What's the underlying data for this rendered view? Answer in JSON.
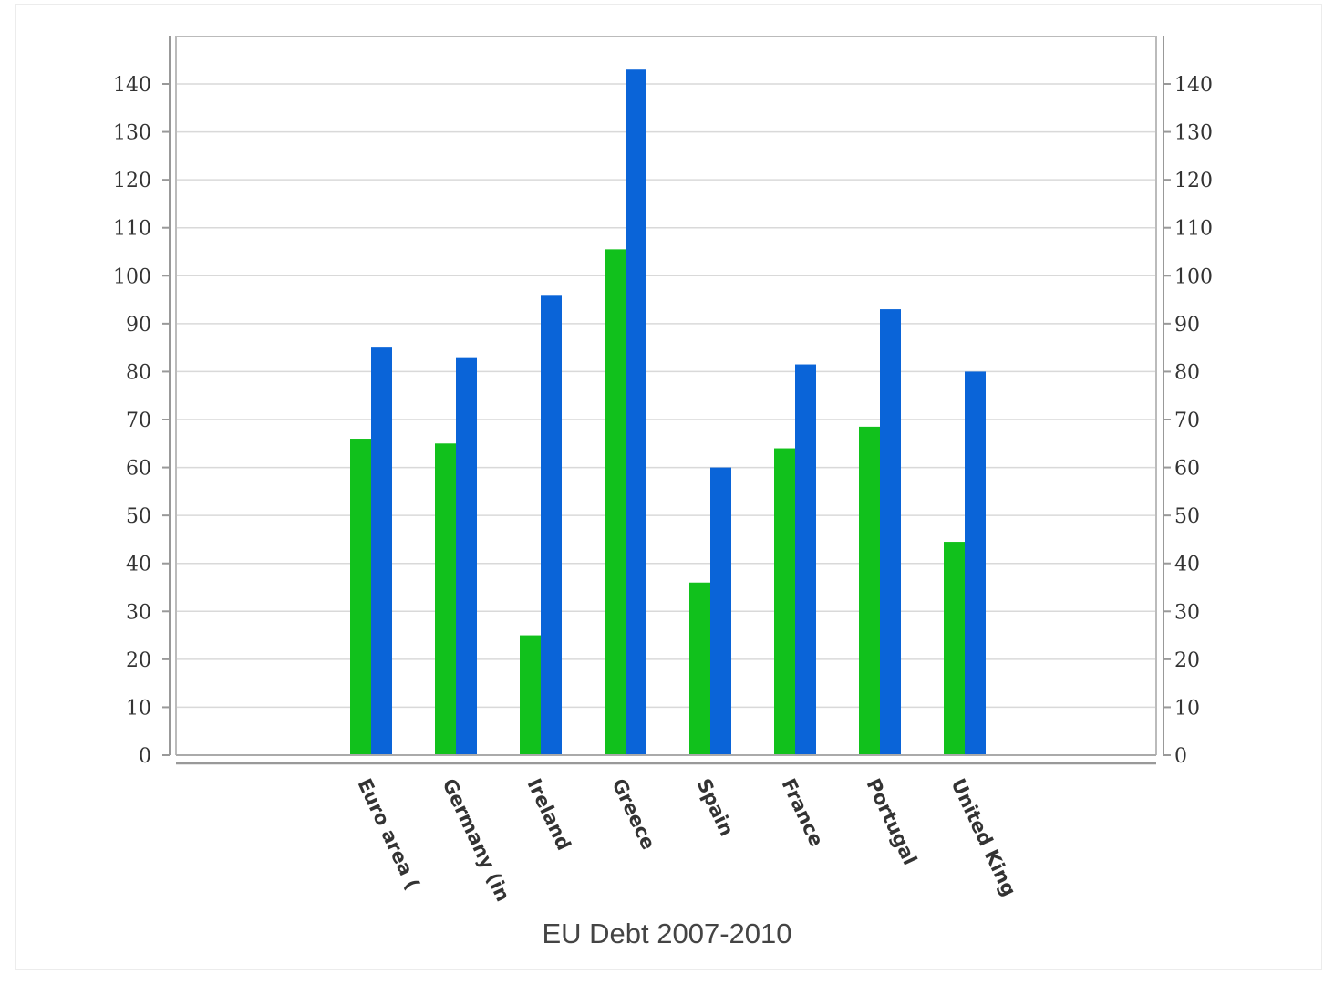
{
  "chart_data": {
    "type": "bar",
    "title": "EU Debt 2007-2010",
    "xlabel": "",
    "ylabel": "",
    "categories": [
      "Euro area (",
      "Germany (in",
      "Ireland",
      "Greece",
      "Spain",
      "France",
      "Portugal",
      "United King"
    ],
    "series": [
      {
        "values": [
          66,
          65,
          25,
          105.5,
          36,
          64,
          68.5,
          44.5
        ],
        "color": "#11c11c"
      },
      {
        "values": [
          85,
          83,
          96,
          143,
          60,
          81.5,
          93,
          80
        ],
        "color": "#0a64d8"
      }
    ],
    "ylim": [
      0,
      140
    ],
    "yticks": [
      0,
      10,
      20,
      30,
      40,
      50,
      60,
      70,
      80,
      90,
      100,
      110,
      120,
      130,
      140
    ],
    "grid": true,
    "legend": "none",
    "colors": {
      "gridline": "#d9d9d9",
      "axis": "#999999"
    }
  }
}
